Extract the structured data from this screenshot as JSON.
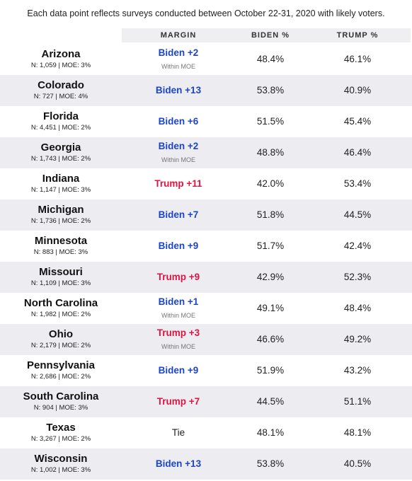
{
  "note": "Each data point reflects surveys conducted between October 22-31, 2020 with likely voters.",
  "table": {
    "columns": [
      "MARGIN",
      "BIDEN %",
      "TRUMP %"
    ],
    "rows": [
      {
        "state": "Arizona",
        "meta": "N: 1,059 | MOE: 3%",
        "margin": "Biden +2",
        "margin_note": "Within MOE",
        "margin_color": "#1d45c4",
        "biden": "48.4%",
        "trump": "46.1%"
      },
      {
        "state": "Colorado",
        "meta": "N: 727 | MOE: 4%",
        "margin": "Biden +13",
        "margin_color": "#1d45c4",
        "biden": "53.8%",
        "trump": "40.9%"
      },
      {
        "state": "Florida",
        "meta": "N: 4,451 | MOE: 2%",
        "margin": "Biden +6",
        "margin_color": "#1d45c4",
        "biden": "51.5%",
        "trump": "45.4%"
      },
      {
        "state": "Georgia",
        "meta": "N: 1,743 | MOE: 2%",
        "margin": "Biden +2",
        "margin_note": "Within MOE",
        "margin_color": "#1d45c4",
        "biden": "48.8%",
        "trump": "46.4%"
      },
      {
        "state": "Indiana",
        "meta": "N: 1,147 | MOE: 3%",
        "margin": "Trump +11",
        "margin_color": "#e0153f",
        "biden": "42.0%",
        "trump": "53.4%"
      },
      {
        "state": "Michigan",
        "meta": "N: 1,736 | MOE: 2%",
        "margin": "Biden +7",
        "margin_color": "#1d45c4",
        "biden": "51.8%",
        "trump": "44.5%"
      },
      {
        "state": "Minnesota",
        "meta": "N: 883 | MOE: 3%",
        "margin": "Biden +9",
        "margin_color": "#1d45c4",
        "biden": "51.7%",
        "trump": "42.4%"
      },
      {
        "state": "Missouri",
        "meta": "N: 1,109 | MOE: 3%",
        "margin": "Trump +9",
        "margin_color": "#e0153f",
        "biden": "42.9%",
        "trump": "52.3%"
      },
      {
        "state": "North Carolina",
        "meta": "N: 1,982 | MOE: 2%",
        "margin": "Biden +1",
        "margin_note": "Within MOE",
        "margin_color": "#1d45c4",
        "biden": "49.1%",
        "trump": "48.4%"
      },
      {
        "state": "Ohio",
        "meta": "N: 2,179 | MOE: 2%",
        "margin": "Trump +3",
        "margin_note": "Within MOE",
        "margin_color": "#e0153f",
        "biden": "46.6%",
        "trump": "49.2%"
      },
      {
        "state": "Pennsylvania",
        "meta": "N: 2,686 | MOE: 2%",
        "margin": "Biden +9",
        "margin_color": "#1d45c4",
        "biden": "51.9%",
        "trump": "43.2%"
      },
      {
        "state": "South Carolina",
        "meta": "N: 904 | MOE: 3%",
        "margin": "Trump +7",
        "margin_color": "#e0153f",
        "biden": "44.5%",
        "trump": "51.1%"
      },
      {
        "state": "Texas",
        "meta": "N: 3,267 | MOE: 2%",
        "margin": "Tie",
        "margin_color": "#222222",
        "biden": "48.1%",
        "trump": "48.1%"
      },
      {
        "state": "Wisconsin",
        "meta": "N: 1,002 | MOE: 3%",
        "margin": "Biden +13",
        "margin_color": "#1d45c4",
        "biden": "53.8%",
        "trump": "40.5%"
      }
    ]
  }
}
